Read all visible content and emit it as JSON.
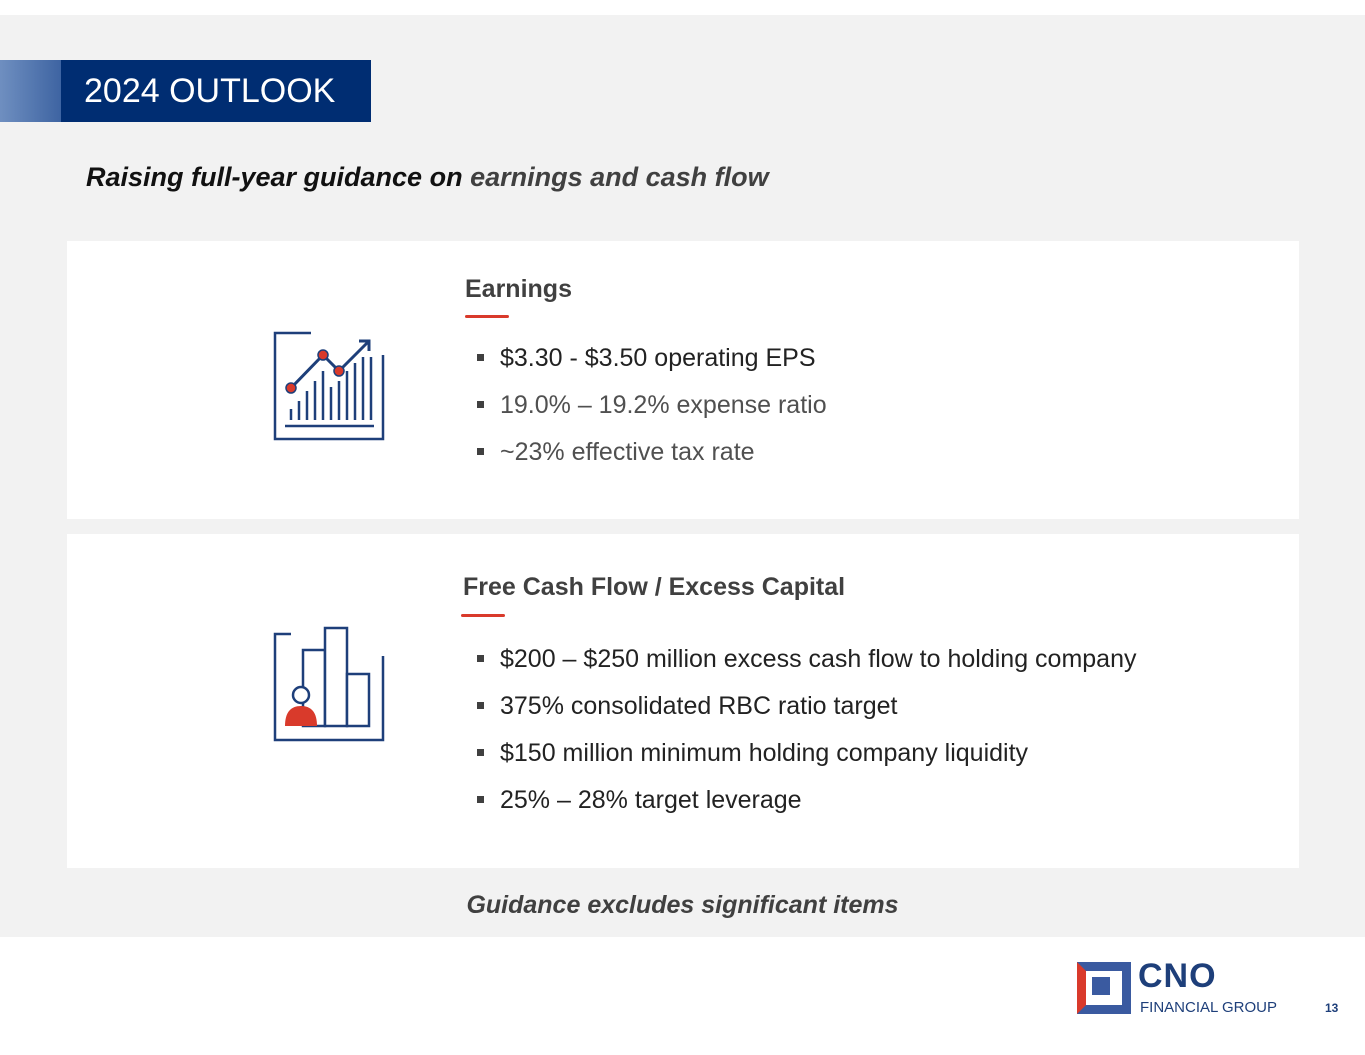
{
  "header": {
    "title": "2024 OUTLOOK",
    "subtitle_main": "Raising full-year guidance on ",
    "subtitle_highlight": "earnings and cash flow"
  },
  "cards": [
    {
      "icon": "chart-growth-icon",
      "heading": "Earnings",
      "bullets": [
        "$3.30 - $3.50 operating EPS",
        "19.0% – 19.2% expense ratio",
        "~23% effective tax rate"
      ]
    },
    {
      "icon": "bar-chart-person-icon",
      "heading": "Free Cash Flow / Excess Capital",
      "bullets": [
        "$200 – $250 million excess cash flow to holding company",
        "375% consolidated RBC ratio target",
        "$150 million minimum holding company liquidity",
        "25% – 28% target leverage"
      ]
    }
  ],
  "footer_note": "Guidance excludes significant items",
  "logo": {
    "name": "CNO",
    "tagline": "FINANCIAL GROUP"
  },
  "page_number": "13",
  "colors": {
    "navy": "#002d72",
    "accent_red": "#d93a2b",
    "background": "#f2f2f2"
  }
}
